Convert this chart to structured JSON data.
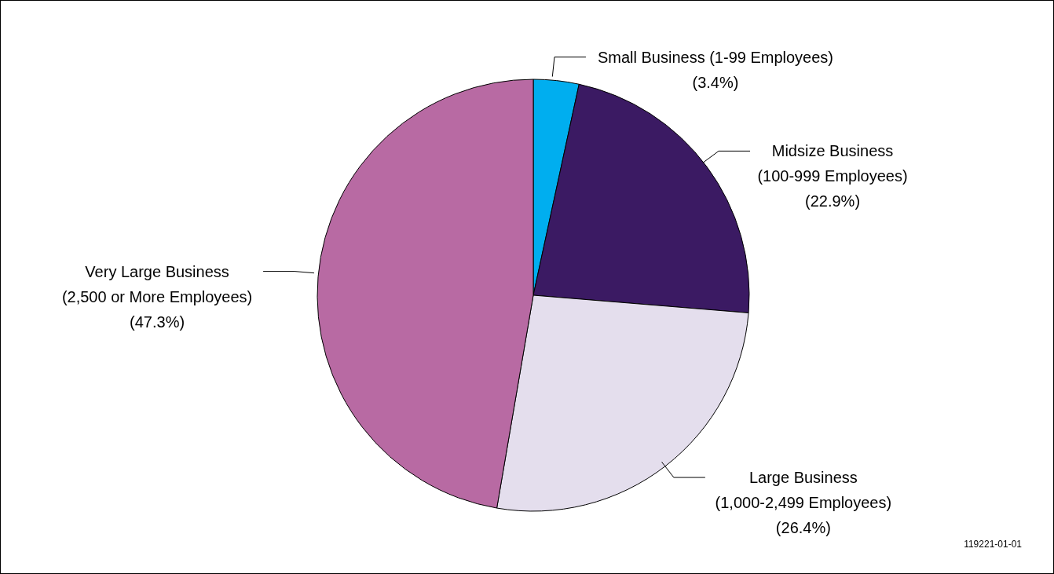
{
  "chart_data": {
    "type": "pie",
    "categories": [
      "Small Business (1-99 Employees)",
      "Midsize Business (100-999 Employees)",
      "Large Business (1,000-2,499 Employees)",
      "Very Large Business (2,500 or More Employees)"
    ],
    "values": [
      3.4,
      22.9,
      26.4,
      47.3
    ],
    "value_labels": [
      "(3.4%)",
      "(22.9%)",
      "(26.4%)",
      "(47.3%)"
    ],
    "colors": [
      "#00aeef",
      "#3b1a63",
      "#e4deed",
      "#b86aa3"
    ],
    "legend": false,
    "annotations": [
      "119221-01-01"
    ]
  }
}
